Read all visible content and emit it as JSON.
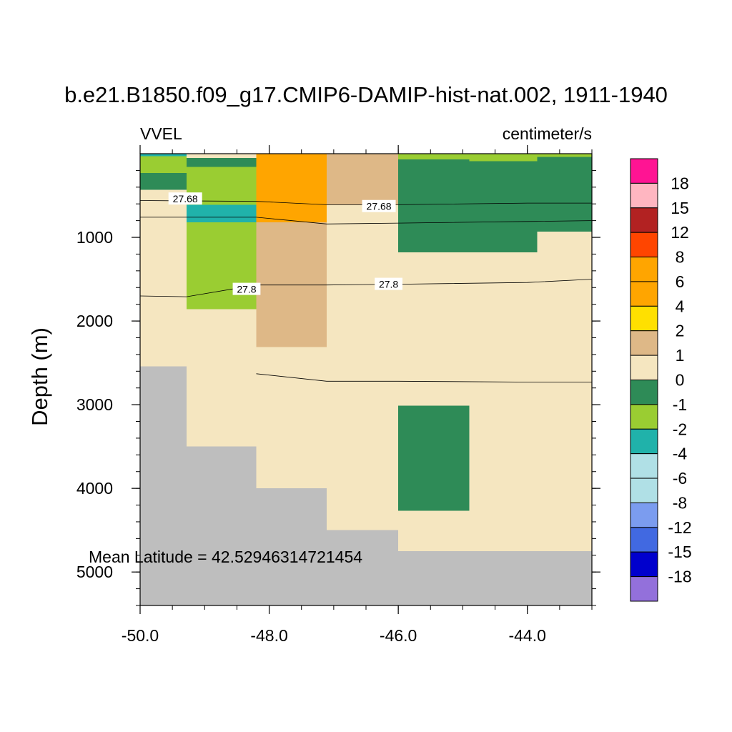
{
  "chart_data": {
    "type": "heatmap",
    "title": "b.e21.B1850.f09_g17.CMIP6-DAMIP-hist-nat.002, 1911-1940",
    "left_label": "VVEL",
    "right_label": "centimeter/s",
    "ylabel": "Depth (m)",
    "annotation": "Mean Latitude = 42.52946314721454",
    "xlim": [
      -50.0,
      -43.0
    ],
    "ylim": [
      0,
      5400
    ],
    "y_inverted": true,
    "x_ticks": [
      -50.0,
      -48.0,
      -46.0,
      -44.0
    ],
    "x_tick_labels": [
      "-50.0",
      "-48.0",
      "-46.0",
      "-44.0"
    ],
    "y_ticks": [
      1000,
      2000,
      3000,
      4000,
      5000
    ],
    "y_tick_labels": [
      "1000",
      "2000",
      "3000",
      "4000",
      "5000"
    ],
    "missing_color": "#BEBEBE",
    "colorbar": {
      "labels": [
        "18",
        "15",
        "12",
        "8",
        "6",
        "4",
        "2",
        "1",
        "0",
        "-1",
        "-2",
        "-4",
        "-6",
        "-8",
        "-12",
        "-15",
        "-18"
      ],
      "colors": [
        "#FF1493",
        "#FFB6C1",
        "#B22222",
        "#FF4500",
        "#FFA500",
        "#FFA500",
        "#FFE000",
        "#DEB887",
        "#F5E6C0",
        "#2E8B57",
        "#9ACD32",
        "#20B2AA",
        "#B0E0E6",
        "#B0E0E6",
        "#7B9CEF",
        "#4169E1",
        "#0000CD",
        "#9370DB"
      ]
    },
    "cells": [
      {
        "x0": -50.0,
        "x1": -49.28,
        "d0": 0,
        "d1": 30,
        "v": -4
      },
      {
        "x0": -50.0,
        "x1": -49.28,
        "d0": 30,
        "d1": 230,
        "v": -2
      },
      {
        "x0": -50.0,
        "x1": -49.28,
        "d0": 230,
        "d1": 430,
        "v": -1
      },
      {
        "x0": -50.0,
        "x1": -49.28,
        "d0": 430,
        "d1": 2540,
        "v": 0
      },
      {
        "x0": -49.28,
        "x1": -48.2,
        "d0": 0,
        "d1": 50,
        "v": 0
      },
      {
        "x0": -49.28,
        "x1": -48.2,
        "d0": 50,
        "d1": 160,
        "v": -1
      },
      {
        "x0": -49.28,
        "x1": -48.2,
        "d0": 160,
        "d1": 610,
        "v": -2
      },
      {
        "x0": -49.28,
        "x1": -48.2,
        "d0": 610,
        "d1": 820,
        "v": -4
      },
      {
        "x0": -49.28,
        "x1": -48.2,
        "d0": 820,
        "d1": 1860,
        "v": -2
      },
      {
        "x0": -49.28,
        "x1": -48.2,
        "d0": 1860,
        "d1": 3500,
        "v": 0
      },
      {
        "x0": -48.2,
        "x1": -47.11,
        "d0": 0,
        "d1": 360,
        "v": 6
      },
      {
        "x0": -48.2,
        "x1": -47.11,
        "d0": 360,
        "d1": 820,
        "v": 4
      },
      {
        "x0": -48.2,
        "x1": -47.11,
        "d0": 820,
        "d1": 2310,
        "v": 1
      },
      {
        "x0": -48.2,
        "x1": -47.11,
        "d0": 2310,
        "d1": 4000,
        "v": 0
      },
      {
        "x0": -47.11,
        "x1": -46.0,
        "d0": 0,
        "d1": 610,
        "v": 1
      },
      {
        "x0": -47.11,
        "x1": -46.0,
        "d0": 610,
        "d1": 4500,
        "v": 0
      },
      {
        "x0": -46.0,
        "x1": -44.9,
        "d0": 0,
        "d1": 70,
        "v": -2
      },
      {
        "x0": -46.0,
        "x1": -44.9,
        "d0": 70,
        "d1": 1180,
        "v": -1
      },
      {
        "x0": -46.0,
        "x1": -44.9,
        "d0": 1180,
        "d1": 3010,
        "v": 0
      },
      {
        "x0": -46.0,
        "x1": -44.9,
        "d0": 3010,
        "d1": 4270,
        "v": -1
      },
      {
        "x0": -46.0,
        "x1": -44.9,
        "d0": 4270,
        "d1": 4750,
        "v": 0
      },
      {
        "x0": -44.9,
        "x1": -43.85,
        "d0": 0,
        "d1": 90,
        "v": -2
      },
      {
        "x0": -44.9,
        "x1": -43.85,
        "d0": 90,
        "d1": 1180,
        "v": -1
      },
      {
        "x0": -44.9,
        "x1": -43.85,
        "d0": 1180,
        "d1": 4750,
        "v": 0
      },
      {
        "x0": -43.85,
        "x1": -43.0,
        "d0": 0,
        "d1": 40,
        "v": -2
      },
      {
        "x0": -43.85,
        "x1": -43.0,
        "d0": 40,
        "d1": 930,
        "v": -1
      },
      {
        "x0": -43.85,
        "x1": -43.0,
        "d0": 930,
        "d1": 4750,
        "v": 0
      }
    ],
    "bathymetry": [
      {
        "x0": -50.0,
        "x1": -49.28,
        "depth": 2540
      },
      {
        "x0": -49.28,
        "x1": -48.2,
        "depth": 3500
      },
      {
        "x0": -48.2,
        "x1": -47.11,
        "depth": 4000
      },
      {
        "x0": -47.11,
        "x1": -46.0,
        "depth": 4500
      },
      {
        "x0": -46.0,
        "x1": -43.0,
        "depth": 4750
      }
    ],
    "contours": [
      {
        "value": "27.68",
        "points": [
          [
            -50.0,
            560
          ],
          [
            -48.2,
            570
          ],
          [
            -47.11,
            610
          ],
          [
            -46.0,
            610
          ],
          [
            -44.0,
            590
          ],
          [
            -43.0,
            590
          ]
        ],
        "labels": [
          {
            "x": -49.3,
            "d": 540,
            "text": "27.68"
          },
          {
            "x": -46.3,
            "d": 630,
            "text": "27.68"
          }
        ]
      },
      {
        "value": "",
        "points": [
          [
            -50.0,
            760
          ],
          [
            -48.2,
            760
          ],
          [
            -47.11,
            840
          ],
          [
            -46.0,
            830
          ],
          [
            -44.0,
            810
          ],
          [
            -43.0,
            800
          ]
        ],
        "labels": []
      },
      {
        "value": "27.8",
        "points": [
          [
            -50.0,
            1700
          ],
          [
            -49.28,
            1710
          ],
          [
            -48.2,
            1570
          ],
          [
            -47.11,
            1570
          ],
          [
            -46.0,
            1560
          ],
          [
            -44.0,
            1540
          ],
          [
            -43.0,
            1500
          ]
        ],
        "labels": [
          {
            "x": -48.35,
            "d": 1620,
            "text": "27.8"
          },
          {
            "x": -46.15,
            "d": 1560,
            "text": "27.8"
          }
        ]
      },
      {
        "value": "",
        "points": [
          [
            -48.2,
            2630
          ],
          [
            -47.11,
            2720
          ],
          [
            -46.0,
            2720
          ],
          [
            -44.0,
            2730
          ],
          [
            -43.0,
            2730
          ]
        ],
        "labels": []
      }
    ]
  }
}
